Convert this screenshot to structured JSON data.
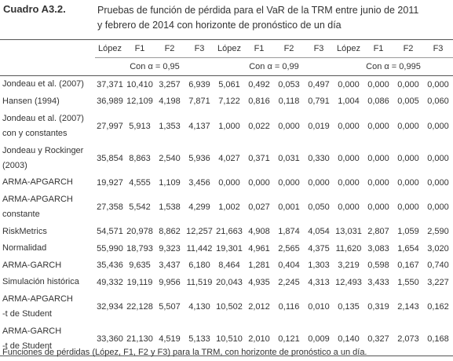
{
  "header": {
    "label": "Cuadro A3.2.",
    "title": [
      "Pruebas de función de pérdida para el VaR de la TRM entre junio de 2011",
      "y febrero de 2014 con horizonte de pronóstico de un día"
    ]
  },
  "table": {
    "columns": [
      "López",
      "F1",
      "F2",
      "F3",
      "López",
      "F1",
      "F2",
      "F3",
      "López",
      "F1",
      "F2",
      "F3"
    ],
    "groups": [
      "Con α = 0,95",
      "Con α = 0,99",
      "Con α = 0,995"
    ],
    "rows": [
      {
        "label": [
          "Jondeau et al. (2007)"
        ],
        "values": [
          "37,371",
          "10,410",
          "3,257",
          "6,939",
          "5,061",
          "0,492",
          "0,053",
          "0,497",
          "0,000",
          "0,000",
          "0,000",
          "0,000"
        ]
      },
      {
        "label": [
          "Hansen (1994)"
        ],
        "values": [
          "36,989",
          "12,109",
          "4,198",
          "7,871",
          "7,122",
          "0,816",
          "0,118",
          "0,791",
          "1,004",
          "0,086",
          "0,005",
          "0,060"
        ]
      },
      {
        "label": [
          "Jondeau et al. (2007)",
          "con y constantes"
        ],
        "values": [
          "27,997",
          "5,913",
          "1,353",
          "4,137",
          "1,000",
          "0,022",
          "0,000",
          "0,019",
          "0,000",
          "0,000",
          "0,000",
          "0,000"
        ]
      },
      {
        "label": [
          "Jondeau y Rockinger",
          "(2003)"
        ],
        "values": [
          "35,854",
          "8,863",
          "2,540",
          "5,936",
          "4,027",
          "0,371",
          "0,031",
          "0,330",
          "0,000",
          "0,000",
          "0,000",
          "0,000"
        ]
      },
      {
        "label": [
          "ARMA-APGARCH"
        ],
        "values": [
          "19,927",
          "4,555",
          "1,109",
          "3,456",
          "0,000",
          "0,000",
          "0,000",
          "0,000",
          "0,000",
          "0,000",
          "0,000",
          "0,000"
        ]
      },
      {
        "label": [
          "ARMA-APGARCH",
          "constante"
        ],
        "values": [
          "27,358",
          "5,542",
          "1,538",
          "4,299",
          "1,002",
          "0,027",
          "0,001",
          "0,050",
          "0,000",
          "0,000",
          "0,000",
          "0,000"
        ]
      },
      {
        "label": [
          "RiskMetrics"
        ],
        "values": [
          "54,571",
          "20,978",
          "8,862",
          "12,257",
          "21,663",
          "4,908",
          "1,874",
          "4,054",
          "13,031",
          "2,807",
          "1,059",
          "2,590"
        ]
      },
      {
        "label": [
          "Normalidad"
        ],
        "values": [
          "55,990",
          "18,793",
          "9,323",
          "11,442",
          "19,301",
          "4,961",
          "2,565",
          "4,375",
          "11,620",
          "3,083",
          "1,654",
          "3,020"
        ]
      },
      {
        "label": [
          "ARMA-GARCH"
        ],
        "values": [
          "35,436",
          "9,635",
          "3,437",
          "6,180",
          "8,464",
          "1,281",
          "0,404",
          "1,303",
          "3,219",
          "0,598",
          "0,167",
          "0,740"
        ]
      },
      {
        "label": [
          "Simulación histórica"
        ],
        "values": [
          "49,332",
          "19,119",
          "9,956",
          "11,519",
          "20,043",
          "4,935",
          "2,245",
          "4,313",
          "12,493",
          "3,433",
          "1,550",
          "3,227"
        ]
      },
      {
        "label": [
          "ARMA-APGARCH",
          "-t de Student"
        ],
        "values": [
          "32,934",
          "22,128",
          "5,507",
          "4,130",
          "10,502",
          "2,012",
          "0,116",
          "0,010",
          "0,135",
          "0,319",
          "2,143",
          "0,162"
        ]
      },
      {
        "label": [
          "ARMA-GARCH",
          "-t de Student"
        ],
        "values": [
          "33,360",
          "21,130",
          "4,519",
          "5,133",
          "10,510",
          "2,010",
          "0,121",
          "0,009",
          "0,140",
          "0,327",
          "2,073",
          "0,168"
        ]
      }
    ]
  },
  "footnote": "Funciones de pérdidas (López, F1, F2 y F3) para la TRM, con horizonte de pronóstico a un día."
}
